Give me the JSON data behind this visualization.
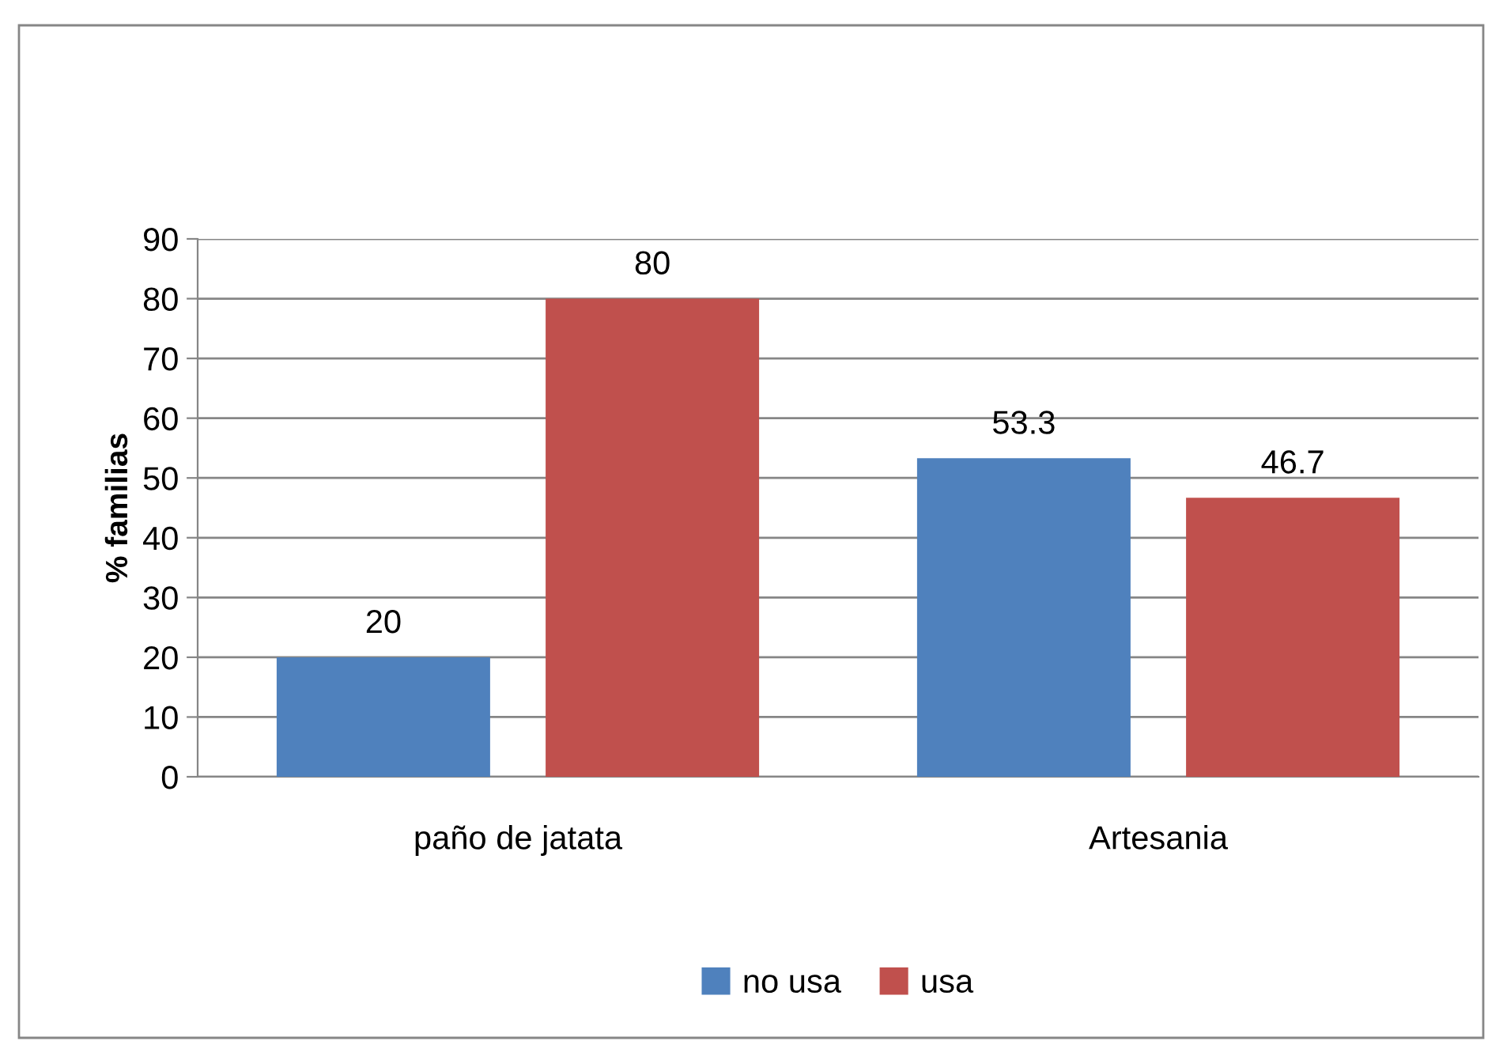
{
  "chart_data": {
    "type": "bar",
    "ylabel": "% familias",
    "categories": [
      "paño de jatata",
      "Artesania"
    ],
    "series": [
      {
        "name": "no usa",
        "color": "#4f81bd",
        "values": [
          20,
          53.3
        ]
      },
      {
        "name": "usa",
        "color": "#c0504d",
        "values": [
          80,
          46.7
        ]
      }
    ],
    "ylim": [
      0,
      90
    ],
    "yticks": [
      0,
      10,
      20,
      30,
      40,
      50,
      60,
      70,
      80,
      90
    ],
    "grid": "y",
    "legend": "bottom",
    "data_labels": true
  }
}
